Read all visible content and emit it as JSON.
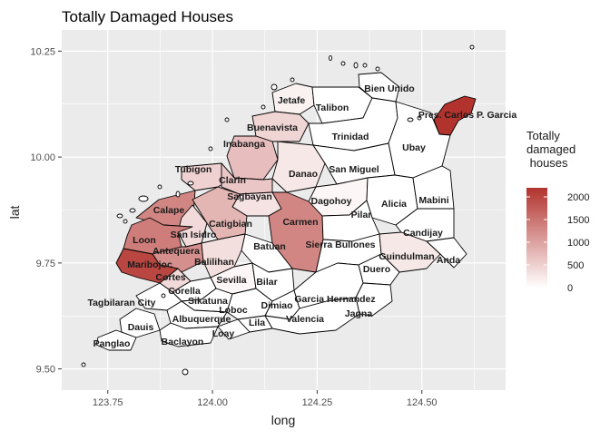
{
  "title": "Totally Damaged Houses",
  "xlabel": "long",
  "ylabel": "lat",
  "x_ticks": [
    "123.75",
    "124.00",
    "124.25",
    "124.50"
  ],
  "y_ticks": [
    "9.50",
    "9.75",
    "10.00",
    "10.25"
  ],
  "legend": {
    "title_lines": [
      "Totally",
      "damaged",
      " houses"
    ],
    "ticks": [
      "2000",
      "1500",
      "1000",
      "500",
      "0"
    ],
    "color_low": "#ffffff",
    "color_high": "#b2332e",
    "range": [
      0,
      2200
    ]
  },
  "colors": {
    "panel_bg": "#ebebeb",
    "grid": "#ffffff",
    "boundary": "#000000"
  },
  "chart_data": {
    "type": "choropleth",
    "value_name": "Totally damaged houses",
    "xlim": [
      123.64,
      124.7
    ],
    "ylim": [
      9.45,
      10.3
    ],
    "regions": [
      {
        "name": "Bien Unido",
        "value": 0
      },
      {
        "name": "Jetafe",
        "value": 150
      },
      {
        "name": "Talibon",
        "value": 0
      },
      {
        "name": "Pres. Carlos P. Garcia",
        "value": 2200
      },
      {
        "name": "Buenavista",
        "value": 450
      },
      {
        "name": "Trinidad",
        "value": 0
      },
      {
        "name": "Inabanga",
        "value": 700
      },
      {
        "name": "Ubay",
        "value": 0
      },
      {
        "name": "Danao",
        "value": 250
      },
      {
        "name": "San Miguel",
        "value": 0
      },
      {
        "name": "Tubigon",
        "value": 500
      },
      {
        "name": "Clarin",
        "value": 600
      },
      {
        "name": "Sagbayan",
        "value": 300
      },
      {
        "name": "Dagohoy",
        "value": 100
      },
      {
        "name": "Alicia",
        "value": 0
      },
      {
        "name": "Mabini",
        "value": 0
      },
      {
        "name": "Calape",
        "value": 1300
      },
      {
        "name": "Catigbian",
        "value": 800
      },
      {
        "name": "Carmen",
        "value": 1300
      },
      {
        "name": "Pilar",
        "value": 0
      },
      {
        "name": "San Isidro",
        "value": 400
      },
      {
        "name": "Candijay",
        "value": 0
      },
      {
        "name": "Loon",
        "value": 1400
      },
      {
        "name": "Antequera",
        "value": 1200
      },
      {
        "name": "Batuan",
        "value": 0
      },
      {
        "name": "Sierra Bullones",
        "value": 0
      },
      {
        "name": "Balilihan",
        "value": 350
      },
      {
        "name": "Guindulman",
        "value": 250
      },
      {
        "name": "Anda",
        "value": 0
      },
      {
        "name": "Maribojoc",
        "value": 2000
      },
      {
        "name": "Duero",
        "value": 0
      },
      {
        "name": "Cortes",
        "value": 400
      },
      {
        "name": "Sevilla",
        "value": 100
      },
      {
        "name": "Bilar",
        "value": 0
      },
      {
        "name": "Corella",
        "value": 0
      },
      {
        "name": "Sikatuna",
        "value": 0
      },
      {
        "name": "Dimiao",
        "value": 0
      },
      {
        "name": "Garcia Hernandez",
        "value": 0
      },
      {
        "name": "Tagbilaran City",
        "value": 0
      },
      {
        "name": "Loboc",
        "value": 0
      },
      {
        "name": "Jagna",
        "value": 0
      },
      {
        "name": "Albuquerque",
        "value": 0
      },
      {
        "name": "Lila",
        "value": 0
      },
      {
        "name": "Valencia",
        "value": 0
      },
      {
        "name": "Dauis",
        "value": 0
      },
      {
        "name": "Loay",
        "value": 0
      },
      {
        "name": "Baclayon",
        "value": 0
      },
      {
        "name": "Panglao",
        "value": 0
      }
    ]
  }
}
